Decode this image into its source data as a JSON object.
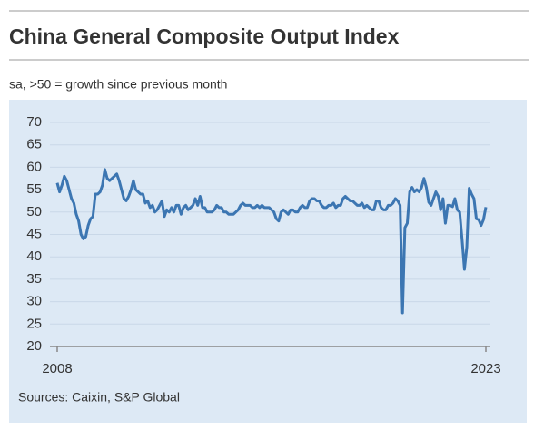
{
  "chart_data": {
    "type": "line",
    "title": "China General Composite Output Index",
    "subtitle": "sa, >50 = growth since previous month",
    "source": "Sources: Caixin, S&P Global",
    "color": "#3c76b2",
    "grid": true,
    "ylim": [
      20,
      70
    ],
    "yticks": [
      20,
      25,
      30,
      35,
      40,
      45,
      50,
      55,
      60,
      65,
      70
    ],
    "categories": [
      "2008",
      null,
      null,
      null,
      null,
      null,
      null,
      null,
      null,
      null,
      null,
      null,
      null,
      null,
      null,
      null,
      null,
      null,
      null,
      null,
      null,
      null,
      null,
      null,
      null,
      null,
      null,
      null,
      null,
      null,
      null,
      null,
      null,
      null,
      null,
      null,
      null,
      null,
      null,
      null,
      null,
      null,
      null,
      null,
      null,
      null,
      null,
      null,
      null,
      null,
      null,
      null,
      null,
      null,
      null,
      null,
      null,
      null,
      null,
      null,
      null,
      null,
      null,
      null,
      null,
      null,
      null,
      null,
      null,
      null,
      null,
      null,
      null,
      null,
      null,
      null,
      null,
      null,
      null,
      null,
      null,
      null,
      null,
      null,
      null,
      null,
      null,
      null,
      null,
      null,
      null,
      null,
      null,
      null,
      null,
      null,
      null,
      null,
      null,
      null,
      null,
      null,
      null,
      null,
      null,
      null,
      null,
      null,
      null,
      null,
      null,
      null,
      null,
      null,
      null,
      null,
      null,
      null,
      null,
      null,
      null,
      null,
      null,
      null,
      null,
      null,
      null,
      null,
      null,
      null,
      null,
      null,
      null,
      null,
      null,
      null,
      null,
      null,
      null,
      null,
      null,
      null,
      null,
      null,
      null,
      null,
      null,
      null,
      null,
      null,
      null,
      null,
      null,
      null,
      null,
      null,
      null,
      null,
      null,
      null,
      null,
      null,
      null,
      null,
      null,
      null,
      null,
      null,
      null,
      null,
      null,
      null,
      null,
      null,
      null,
      null,
      null,
      null,
      null,
      null,
      "2023"
    ],
    "values": [
      56.5,
      54.5,
      56,
      58,
      57,
      55,
      53,
      52,
      49.5,
      48,
      45,
      44,
      44.5,
      47,
      48.5,
      49,
      54,
      54,
      54.5,
      56,
      59.5,
      57.5,
      57,
      57.5,
      58,
      58.5,
      57,
      55,
      53,
      52.5,
      53.5,
      55,
      57,
      55,
      54.5,
      54,
      54,
      52,
      52.5,
      51,
      51.5,
      50,
      50.5,
      51.5,
      52.5,
      49,
      50.5,
      50,
      51,
      50,
      51.5,
      51.5,
      49.5,
      51,
      51.5,
      50.5,
      51,
      51.5,
      53,
      51.5,
      53.5,
      51,
      51,
      50,
      50,
      50,
      50.5,
      51.5,
      51,
      51,
      50,
      50,
      49.5,
      49.5,
      49.5,
      50,
      50.5,
      51.5,
      52,
      51.5,
      51.5,
      51.5,
      51,
      51,
      51.5,
      51,
      51.5,
      51,
      51,
      51,
      50.5,
      50,
      48.5,
      48,
      50,
      50.5,
      50,
      49.5,
      50.5,
      50.5,
      50,
      50,
      51,
      51.5,
      51,
      51,
      52.5,
      53,
      53,
      52.5,
      52.5,
      51.5,
      51,
      51,
      51.5,
      51.5,
      52,
      51,
      51.5,
      51.5,
      53,
      53.5,
      53,
      52.5,
      52.5,
      52,
      51.5,
      51.5,
      52,
      51,
      51.5,
      51,
      50.5,
      50.5,
      52.5,
      52.5,
      51,
      50.5,
      50.5,
      51.5,
      51.5,
      52,
      53,
      52.5,
      51.5,
      27.5,
      46.5,
      47.5,
      54.5,
      55.5,
      54.5,
      55,
      54.5,
      55.5,
      57.5,
      55.5,
      52.2,
      51.5,
      53,
      54.5,
      53.5,
      50.5,
      53,
      47.5,
      51.5,
      51.5,
      51.2,
      53,
      50.5,
      50,
      43.9,
      37.2,
      42.2,
      55.3,
      54,
      53,
      48.5,
      48.3,
      47,
      48.3,
      51.1
    ]
  }
}
